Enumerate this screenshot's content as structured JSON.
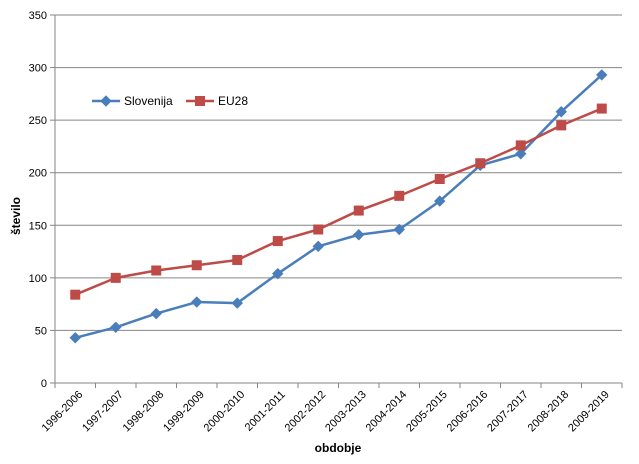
{
  "chart_data": {
    "type": "line",
    "title": "",
    "xlabel": "obdobje",
    "ylabel": "število",
    "ylim": [
      0,
      350
    ],
    "yticks": [
      0,
      50,
      100,
      150,
      200,
      250,
      300,
      350
    ],
    "grid": true,
    "legend_position": "upper-left inside plot",
    "categories": [
      "1996-2006",
      "1997-2007",
      "1998-2008",
      "1999-2009",
      "2000-2010",
      "2001-2011",
      "2002-2012",
      "2003-2013",
      "2004-2014",
      "2005-2015",
      "2006-2016",
      "2007-2017",
      "2008-2018",
      "2009-2019"
    ],
    "series": [
      {
        "name": "Slovenija",
        "color": "#4a7ebb",
        "marker": "diamond",
        "values": [
          43,
          53,
          66,
          77,
          76,
          104,
          130,
          141,
          146,
          173,
          207,
          218,
          258,
          293
        ]
      },
      {
        "name": "EU28",
        "color": "#be4b48",
        "marker": "square",
        "values": [
          84,
          100,
          107,
          112,
          117,
          135,
          146,
          164,
          178,
          194,
          209,
          226,
          245,
          261
        ]
      }
    ]
  }
}
